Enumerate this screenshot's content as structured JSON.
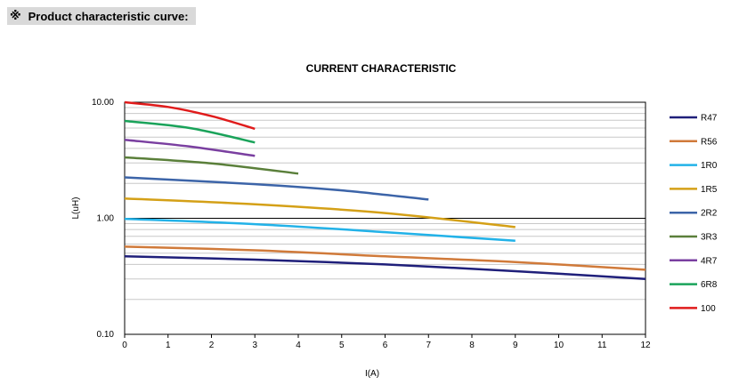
{
  "section": {
    "mark": "※",
    "title": "Product characteristic curve:"
  },
  "chart_data": {
    "type": "line",
    "title": "CURRENT CHARACTERISTIC",
    "xlabel": "I(A)",
    "ylabel": "L(uH)",
    "xlim": [
      0,
      12
    ],
    "ylim": [
      0.1,
      10
    ],
    "yscale": "log",
    "xticks": [
      "0",
      "1",
      "2",
      "3",
      "4",
      "5",
      "6",
      "7",
      "8",
      "9",
      "10",
      "11",
      "12"
    ],
    "yticks": [
      {
        "value": 10,
        "label": "10.00"
      },
      {
        "value": 1,
        "label": "1.00"
      },
      {
        "value": 0.1,
        "label": "0.10"
      }
    ],
    "grid": true,
    "legend": "right",
    "series": [
      {
        "name": "R47",
        "color": "#1f1f7a",
        "x": [
          0,
          3,
          6,
          9,
          12
        ],
        "y": [
          0.47,
          0.44,
          0.4,
          0.35,
          0.3
        ]
      },
      {
        "name": "R56",
        "color": "#d07a3a",
        "x": [
          0,
          3,
          6,
          9,
          12
        ],
        "y": [
          0.57,
          0.53,
          0.47,
          0.42,
          0.36
        ]
      },
      {
        "name": "1R0",
        "color": "#22b2e8",
        "x": [
          0,
          3,
          6,
          9
        ],
        "y": [
          0.99,
          0.89,
          0.76,
          0.64
        ]
      },
      {
        "name": "1R5",
        "color": "#d4a017",
        "x": [
          0,
          3,
          6,
          9
        ],
        "y": [
          1.48,
          1.32,
          1.11,
          0.84
        ]
      },
      {
        "name": "2R2",
        "color": "#3c64a8",
        "x": [
          0,
          3,
          5,
          7
        ],
        "y": [
          2.25,
          1.97,
          1.74,
          1.45
        ]
      },
      {
        "name": "3R3",
        "color": "#5a7f3a",
        "x": [
          0,
          2,
          4
        ],
        "y": [
          3.35,
          2.97,
          2.43
        ]
      },
      {
        "name": "4R7",
        "color": "#7a3fa0",
        "x": [
          0,
          1.5,
          3
        ],
        "y": [
          4.75,
          4.15,
          3.45
        ]
      },
      {
        "name": "6R8",
        "color": "#1aa35a",
        "x": [
          0,
          1.5,
          3
        ],
        "y": [
          6.9,
          6.0,
          4.5
        ]
      },
      {
        "name": "100",
        "color": "#e01b1b",
        "x": [
          0,
          1,
          2,
          3
        ],
        "y": [
          10.0,
          9.1,
          7.6,
          5.9
        ]
      }
    ]
  }
}
